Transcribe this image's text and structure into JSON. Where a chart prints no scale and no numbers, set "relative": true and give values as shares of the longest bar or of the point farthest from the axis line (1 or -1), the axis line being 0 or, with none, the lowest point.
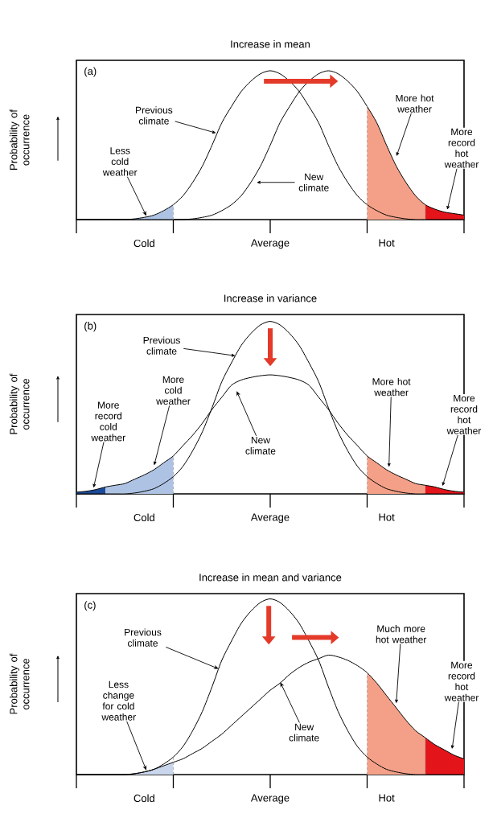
{
  "chart_data": [
    {
      "type": "line",
      "title": "Increase in mean",
      "ylabel": "Probability of occurrence",
      "relative": true,
      "categories": [
        null,
        null,
        null,
        null,
        null,
        null,
        null,
        "Cold",
        null,
        null,
        null,
        null,
        null,
        null,
        null,
        null,
        null,
        null,
        null,
        null,
        "Average",
        null,
        null,
        null,
        null,
        null,
        null,
        null,
        null,
        null,
        null,
        null,
        "Hot",
        null,
        null,
        null,
        null,
        null,
        null,
        null,
        null
      ],
      "series": [
        {
          "type": "area",
          "color": "#aec3e3",
          "values": [
            null,
            null,
            null,
            null,
            null,
            null,
            0.005,
            0.015,
            0.03,
            0.06,
            0.1,
            null,
            null,
            null,
            null,
            null,
            null,
            null,
            null,
            null,
            null,
            null,
            null,
            null,
            null,
            null,
            null,
            null,
            null,
            null,
            null,
            null,
            null,
            null,
            null,
            null,
            null,
            null,
            null,
            null,
            null
          ]
        },
        {
          "type": "area",
          "color": "#f4a088",
          "values": [
            null,
            null,
            null,
            null,
            null,
            null,
            null,
            null,
            null,
            null,
            null,
            null,
            null,
            null,
            null,
            null,
            null,
            null,
            null,
            null,
            null,
            null,
            null,
            null,
            null,
            null,
            null,
            null,
            null,
            null,
            0.76,
            0.65,
            0.5,
            0.36,
            0.25,
            0.16,
            0.1,
            null,
            null,
            null,
            null
          ]
        },
        {
          "type": "area",
          "color": "#e4141b",
          "values": [
            null,
            null,
            null,
            null,
            null,
            null,
            null,
            null,
            null,
            null,
            null,
            null,
            null,
            null,
            null,
            null,
            null,
            null,
            null,
            null,
            null,
            null,
            null,
            null,
            null,
            null,
            null,
            null,
            null,
            null,
            null,
            null,
            null,
            null,
            null,
            null,
            0.1,
            0.07,
            0.05,
            0.04,
            0.03
          ]
        },
        {
          "color": "#000000",
          "values": [
            0,
            0,
            0,
            0,
            0,
            0,
            0.005,
            0.015,
            0.03,
            0.06,
            0.1,
            0.16,
            0.25,
            0.36,
            0.5,
            0.65,
            0.76,
            0.86,
            0.93,
            0.98,
            1,
            0.98,
            0.93,
            0.86,
            0.76,
            0.65,
            0.5,
            0.36,
            0.25,
            0.16,
            0.1,
            0.06,
            0.03,
            0.015,
            0.005,
            0,
            0,
            0,
            0,
            0,
            0
          ]
        },
        {
          "color": "#000000",
          "values": [
            0,
            0,
            0,
            0,
            0,
            0,
            0,
            0,
            0,
            0,
            0,
            0,
            0.005,
            0.015,
            0.03,
            0.06,
            0.1,
            0.16,
            0.25,
            0.36,
            0.5,
            0.65,
            0.76,
            0.86,
            0.93,
            0.98,
            1,
            0.98,
            0.93,
            0.86,
            0.76,
            0.65,
            0.5,
            0.36,
            0.25,
            0.16,
            0.1,
            0.07,
            0.05,
            0.04,
            0.03
          ]
        }
      ],
      "annotations": [
        "(a)",
        "Previous climate",
        "New climate",
        "Less cold weather",
        "More hot weather",
        "More record hot weather"
      ]
    },
    {
      "type": "line",
      "title": "Increase in variance",
      "ylabel": "Probability of occurrence",
      "relative": true,
      "categories": [
        null,
        null,
        null,
        null,
        null,
        null,
        null,
        "Cold",
        null,
        null,
        null,
        null,
        null,
        null,
        null,
        null,
        null,
        null,
        null,
        null,
        "Average",
        null,
        null,
        null,
        null,
        null,
        null,
        null,
        null,
        null,
        null,
        null,
        "Hot",
        null,
        null,
        null,
        null,
        null,
        null,
        null,
        null
      ],
      "series": [
        {
          "type": "area",
          "color": "#1c4a9a",
          "values": [
            0.01,
            0.015,
            0.025,
            0.04,
            null,
            null,
            null,
            null,
            null,
            null,
            null,
            null,
            null,
            null,
            null,
            null,
            null,
            null,
            null,
            null,
            null,
            null,
            null,
            null,
            null,
            null,
            null,
            null,
            null,
            null,
            null,
            null,
            null,
            null,
            null,
            null,
            null,
            null,
            null,
            null,
            null
          ]
        },
        {
          "type": "area",
          "color": "#aec3e3",
          "values": [
            null,
            null,
            null,
            0.04,
            0.05,
            0.06,
            0.085,
            0.11,
            0.14,
            0.18,
            0.22,
            null,
            null,
            null,
            null,
            null,
            null,
            null,
            null,
            null,
            null,
            null,
            null,
            null,
            null,
            null,
            null,
            null,
            null,
            null,
            null,
            null,
            null,
            null,
            null,
            null,
            null,
            null,
            null,
            null,
            null
          ]
        },
        {
          "type": "area",
          "color": "#f4a088",
          "values": [
            null,
            null,
            null,
            null,
            null,
            null,
            null,
            null,
            null,
            null,
            null,
            null,
            null,
            null,
            null,
            null,
            null,
            null,
            null,
            null,
            null,
            null,
            null,
            null,
            null,
            null,
            null,
            null,
            null,
            null,
            0.22,
            0.18,
            0.14,
            0.11,
            0.085,
            0.06,
            0.05,
            null,
            null,
            null,
            null
          ]
        },
        {
          "type": "area",
          "color": "#e4141b",
          "values": [
            null,
            null,
            null,
            null,
            null,
            null,
            null,
            null,
            null,
            null,
            null,
            null,
            null,
            null,
            null,
            null,
            null,
            null,
            null,
            null,
            null,
            null,
            null,
            null,
            null,
            null,
            null,
            null,
            null,
            null,
            null,
            null,
            null,
            null,
            null,
            null,
            0.05,
            0.04,
            0.025,
            0.015,
            0.01
          ]
        },
        {
          "color": "#000000",
          "values": [
            0,
            0,
            0,
            0,
            0,
            0,
            0.005,
            0.015,
            0.03,
            0.06,
            0.1,
            0.16,
            0.25,
            0.36,
            0.5,
            0.65,
            0.76,
            0.86,
            0.93,
            0.98,
            1,
            0.98,
            0.93,
            0.86,
            0.76,
            0.65,
            0.5,
            0.36,
            0.25,
            0.16,
            0.1,
            0.06,
            0.03,
            0.015,
            0.005,
            0,
            0,
            0,
            0,
            0,
            0
          ]
        },
        {
          "color": "#000000",
          "values": [
            0.01,
            0.015,
            0.025,
            0.04,
            0.05,
            0.06,
            0.085,
            0.11,
            0.14,
            0.18,
            0.22,
            0.28,
            0.34,
            0.41,
            0.49,
            0.56,
            0.63,
            0.66,
            0.675,
            0.685,
            0.69,
            0.685,
            0.675,
            0.66,
            0.63,
            0.56,
            0.49,
            0.41,
            0.34,
            0.28,
            0.22,
            0.18,
            0.14,
            0.11,
            0.085,
            0.06,
            0.05,
            0.04,
            0.025,
            0.015,
            0.01
          ]
        }
      ],
      "annotations": [
        "(b)",
        "Previous climate",
        "More cold weather",
        "More record cold weather",
        "New climate",
        "More hot weather",
        "More record hot weather"
      ]
    },
    {
      "type": "line",
      "title": "Increase in mean and variance",
      "ylabel": "Probability of occurrence",
      "relative": true,
      "categories": [
        null,
        null,
        null,
        null,
        null,
        null,
        null,
        "Cold",
        null,
        null,
        null,
        null,
        null,
        null,
        null,
        null,
        null,
        null,
        null,
        null,
        "Average",
        null,
        null,
        null,
        null,
        null,
        null,
        null,
        null,
        null,
        null,
        null,
        "Hot",
        null,
        null,
        null,
        null,
        null,
        null,
        null,
        null
      ],
      "series": [
        {
          "type": "area",
          "color": "#c9d6ec",
          "values": [
            null,
            null,
            null,
            null,
            null,
            0,
            0.005,
            0.015,
            0.03,
            0.05,
            0.07,
            null,
            null,
            null,
            null,
            null,
            null,
            null,
            null,
            null,
            null,
            null,
            null,
            null,
            null,
            null,
            null,
            null,
            null,
            null,
            null,
            null,
            null,
            null,
            null,
            null,
            null,
            null,
            null,
            null,
            null
          ]
        },
        {
          "type": "area",
          "color": "#f4a088",
          "values": [
            null,
            null,
            null,
            null,
            null,
            null,
            null,
            null,
            null,
            null,
            null,
            null,
            null,
            null,
            null,
            null,
            null,
            null,
            null,
            null,
            null,
            null,
            null,
            null,
            null,
            null,
            null,
            null,
            null,
            null,
            0.58,
            0.52,
            0.45,
            0.38,
            0.31,
            0.25,
            0.21,
            null,
            null,
            null,
            null
          ]
        },
        {
          "type": "area",
          "color": "#e4141b",
          "values": [
            null,
            null,
            null,
            null,
            null,
            null,
            null,
            null,
            null,
            null,
            null,
            null,
            null,
            null,
            null,
            null,
            null,
            null,
            null,
            null,
            null,
            null,
            null,
            null,
            null,
            null,
            null,
            null,
            null,
            null,
            null,
            null,
            null,
            null,
            null,
            null,
            0.21,
            0.17,
            0.14,
            0.11,
            0.09
          ]
        },
        {
          "color": "#000000",
          "values": [
            0,
            0,
            0,
            0,
            0,
            0,
            0.005,
            0.015,
            0.03,
            0.06,
            0.1,
            0.16,
            0.25,
            0.36,
            0.5,
            0.65,
            0.76,
            0.86,
            0.93,
            0.98,
            1,
            0.98,
            0.93,
            0.86,
            0.76,
            0.65,
            0.5,
            0.36,
            0.25,
            0.16,
            0.1,
            0.06,
            0.03,
            0.015,
            0.005,
            0,
            0,
            0,
            0,
            0,
            0
          ]
        },
        {
          "color": "#000000",
          "values": [
            0,
            0,
            0,
            0,
            0,
            0,
            0.005,
            0.015,
            0.03,
            0.05,
            0.07,
            0.09,
            0.12,
            0.15,
            0.19,
            0.23,
            0.28,
            0.33,
            0.38,
            0.43,
            0.48,
            0.52,
            0.57,
            0.61,
            0.64,
            0.66,
            0.68,
            0.67,
            0.65,
            0.62,
            0.58,
            0.52,
            0.45,
            0.38,
            0.31,
            0.25,
            0.21,
            0.17,
            0.14,
            0.11,
            0.09
          ]
        }
      ],
      "annotations": [
        "(c)",
        "Previous climate",
        "Less change for cold weather",
        "New climate",
        "Much more hot weather",
        "More record hot weather"
      ]
    }
  ]
}
